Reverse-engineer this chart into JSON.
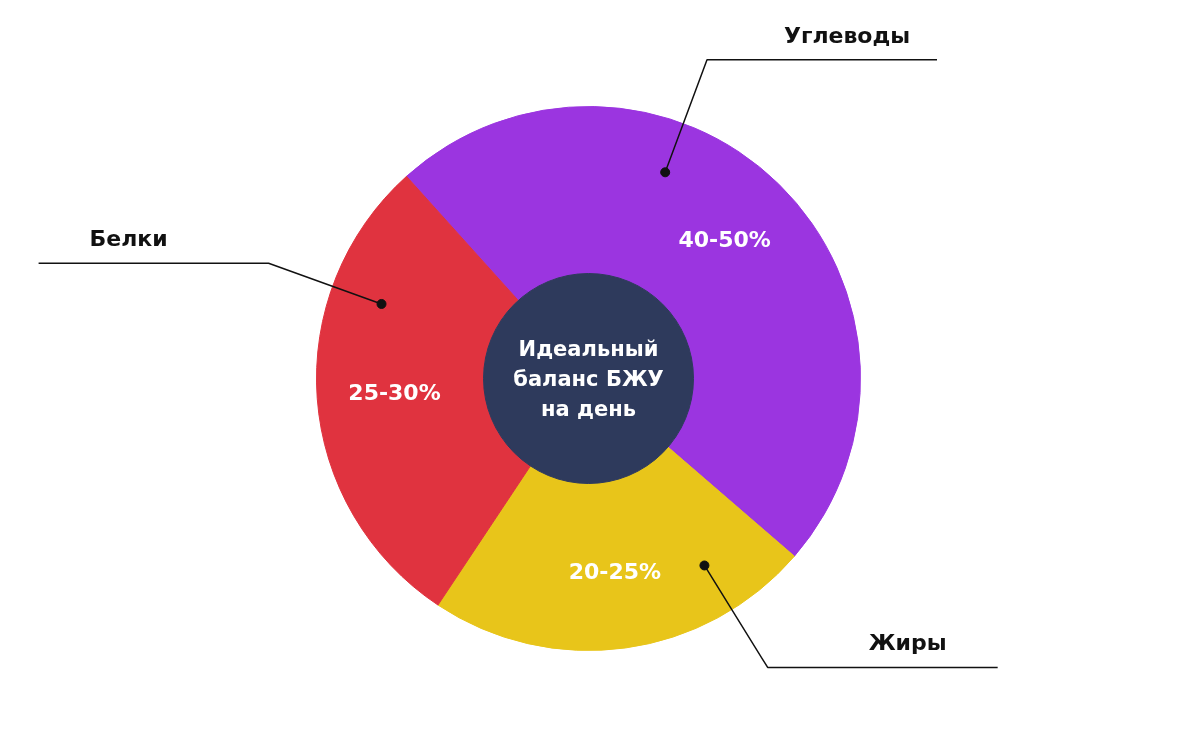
{
  "chart_data": {
    "type": "donut",
    "title": "Идеальный баланс БЖУ на день",
    "categories": [
      "Углеводы",
      "Жиры",
      "Белки"
    ],
    "values": [
      48,
      23,
      29
    ],
    "colors": [
      "#9b35e0",
      "#e8c51a",
      "#e0333f"
    ],
    "annotations": [
      "40-50%",
      "20-25%",
      "25-30%"
    ]
  }
}
